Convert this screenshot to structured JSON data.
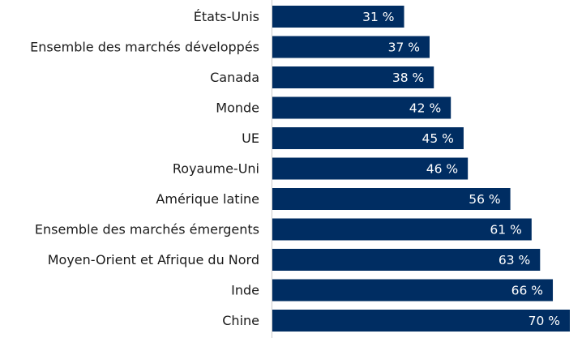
{
  "chart_data": {
    "type": "bar",
    "orientation": "horizontal",
    "categories": [
      "États-Unis",
      "Ensemble des marchés développés",
      "Canada",
      "Monde",
      "UE",
      "Royaume-Uni",
      "Amérique latine",
      "Ensemble des marchés émergents",
      "Moyen-Orient et Afrique du Nord",
      "Inde",
      "Chine"
    ],
    "values": [
      31,
      37,
      38,
      42,
      45,
      46,
      56,
      61,
      63,
      66,
      70
    ],
    "data_labels": [
      "31 %",
      "37 %",
      "38 %",
      "42 %",
      "45 %",
      "46 %",
      "56 %",
      "61 %",
      "63 %",
      "66 %",
      "70 %"
    ],
    "xlim": [
      0,
      70
    ],
    "grid": false,
    "bar_color": "#002d62",
    "axis_color": "#cccccc",
    "title": "",
    "xlabel": "",
    "ylabel": ""
  }
}
